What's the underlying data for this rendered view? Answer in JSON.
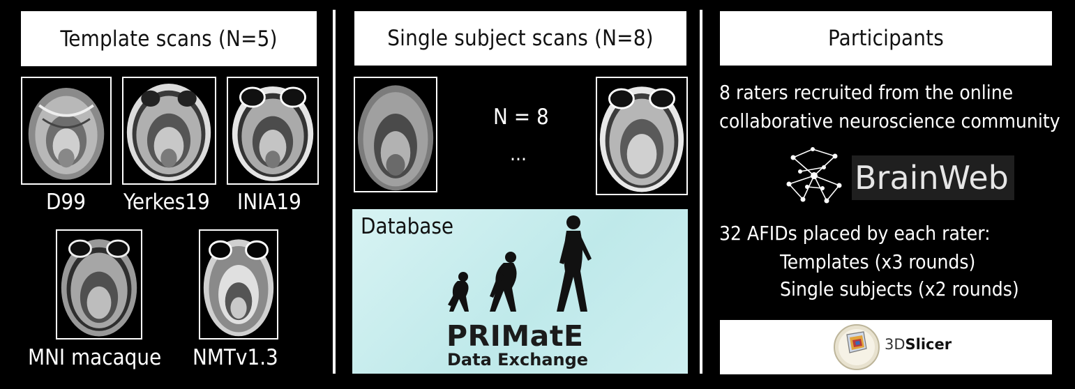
{
  "panels": {
    "templates": {
      "title": "Template scans (N=5)",
      "scans": [
        {
          "label": "D99"
        },
        {
          "label": "Yerkes19"
        },
        {
          "label": "INIA19"
        },
        {
          "label": "MNI macaque"
        },
        {
          "label": "NMTv1.3"
        }
      ]
    },
    "single": {
      "title": "Single subject scans (N=8)",
      "count_text": "N = 8",
      "ellipsis": "...",
      "database_label": "Database",
      "primate_title": "PRIMatE",
      "primate_subtitle": "Data Exchange"
    },
    "participants": {
      "title": "Participants",
      "line1": "8 raters recruited from the online",
      "line2": "collaborative neuroscience community",
      "brainweb_logo_text": "BrainWeb",
      "afids_line": "32 AFIDs placed by each rater:",
      "templates_line": "Templates (x3 rounds)",
      "single_line": "Single subjects (x2 rounds)",
      "slicer_prefix": "3D",
      "slicer_name": "Slicer"
    }
  },
  "colors": {
    "background": "#000000",
    "panel_title_bg": "#ffffff",
    "database_bg": "#c8eeef"
  }
}
